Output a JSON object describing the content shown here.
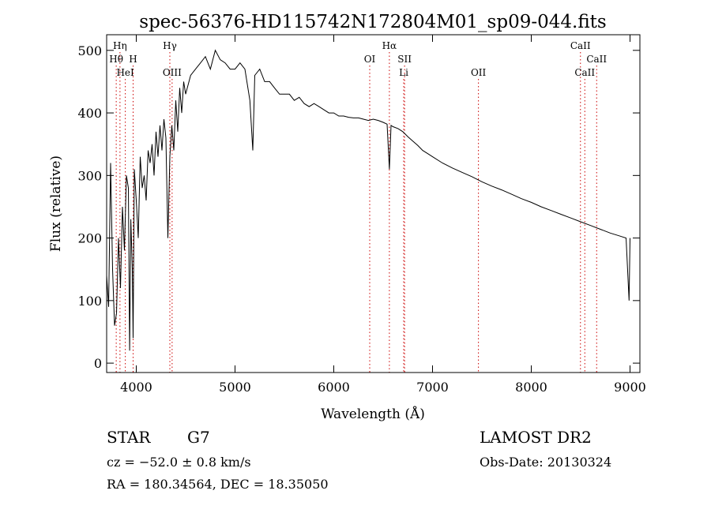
{
  "chart_data": {
    "type": "line",
    "title": "spec-56376-HD115742N172804M01_sp09-044.fits",
    "xlabel": "Wavelength (Å)",
    "ylabel": "Flux (relative)",
    "xlim": [
      3700,
      9100
    ],
    "ylim": [
      -15,
      525
    ],
    "xticks": [
      4000,
      5000,
      6000,
      7000,
      8000,
      9000
    ],
    "yticks": [
      0,
      100,
      200,
      300,
      400,
      500
    ],
    "grid": false,
    "series": [
      {
        "name": "",
        "x": [
          3700,
          3720,
          3740,
          3760,
          3780,
          3800,
          3820,
          3840,
          3860,
          3880,
          3900,
          3920,
          3933,
          3945,
          3960,
          3968,
          3980,
          4000,
          4020,
          4040,
          4060,
          4080,
          4100,
          4120,
          4140,
          4160,
          4180,
          4200,
          4220,
          4240,
          4260,
          4280,
          4300,
          4320,
          4340,
          4360,
          4380,
          4400,
          4420,
          4440,
          4460,
          4480,
          4500,
          4550,
          4600,
          4650,
          4700,
          4750,
          4800,
          4850,
          4900,
          4950,
          5000,
          5050,
          5100,
          5150,
          5180,
          5200,
          5250,
          5300,
          5350,
          5400,
          5450,
          5500,
          5550,
          5600,
          5650,
          5700,
          5750,
          5800,
          5850,
          5900,
          5950,
          6000,
          6050,
          6100,
          6150,
          6200,
          6250,
          6300,
          6350,
          6400,
          6450,
          6500,
          6540,
          6563,
          6580,
          6600,
          6650,
          6700,
          6750,
          6800,
          6850,
          6900,
          6950,
          7000,
          7100,
          7200,
          7300,
          7400,
          7500,
          7600,
          7700,
          7800,
          7900,
          8000,
          8100,
          8200,
          8300,
          8400,
          8500,
          8600,
          8700,
          8800,
          8900,
          8960,
          8990,
          9000
        ],
        "y": [
          140,
          90,
          320,
          150,
          60,
          80,
          200,
          120,
          250,
          180,
          300,
          280,
          20,
          230,
          150,
          40,
          310,
          260,
          200,
          330,
          280,
          300,
          260,
          340,
          320,
          350,
          300,
          370,
          330,
          380,
          340,
          390,
          360,
          200,
          330,
          380,
          340,
          420,
          370,
          440,
          400,
          450,
          430,
          460,
          470,
          480,
          490,
          470,
          500,
          485,
          480,
          470,
          470,
          480,
          470,
          420,
          340,
          460,
          470,
          450,
          450,
          440,
          430,
          430,
          430,
          420,
          425,
          415,
          410,
          415,
          410,
          405,
          400,
          400,
          395,
          395,
          393,
          392,
          392,
          390,
          388,
          390,
          388,
          385,
          382,
          310,
          380,
          378,
          375,
          370,
          362,
          355,
          348,
          340,
          335,
          330,
          320,
          312,
          305,
          298,
          290,
          283,
          277,
          270,
          263,
          257,
          250,
          244,
          238,
          232,
          226,
          220,
          214,
          208,
          203,
          200,
          100,
          200
        ]
      }
    ],
    "line_markers": [
      {
        "label": "Hη",
        "x": 3835,
        "row": 0
      },
      {
        "label": "Hθ",
        "x": 3797,
        "row": 1
      },
      {
        "label": "H",
        "x": 3968,
        "row": 1
      },
      {
        "label": "HeI",
        "x": 3889,
        "row": 2
      },
      {
        "label": "Hγ",
        "x": 4340,
        "row": 0
      },
      {
        "label": "OIII",
        "x": 4363,
        "row": 2
      },
      {
        "label": "OI",
        "x": 6364,
        "row": 1
      },
      {
        "label": "Hα",
        "x": 6563,
        "row": 0
      },
      {
        "label": "SII",
        "x": 6717,
        "row": 1
      },
      {
        "label": "Li",
        "x": 6708,
        "row": 2
      },
      {
        "label": "OII",
        "x": 7465,
        "row": 2
      },
      {
        "label": "CaII",
        "x": 8498,
        "row": 0
      },
      {
        "label": "CaII",
        "x": 8542,
        "row": 2
      },
      {
        "label": "CaII",
        "x": 8662,
        "row": 1
      }
    ]
  },
  "info": {
    "class_label": "STAR",
    "subclass": "G7",
    "survey": "LAMOST DR2",
    "cz": "cz = −52.0 ± 0.8 km/s",
    "obs_date": "Obs-Date: 20130324",
    "coords": "RA = 180.34564, DEC =  18.35050"
  },
  "colors": {
    "marker_line": "#cc0000",
    "spectrum": "#000000",
    "axes": "#000000"
  }
}
